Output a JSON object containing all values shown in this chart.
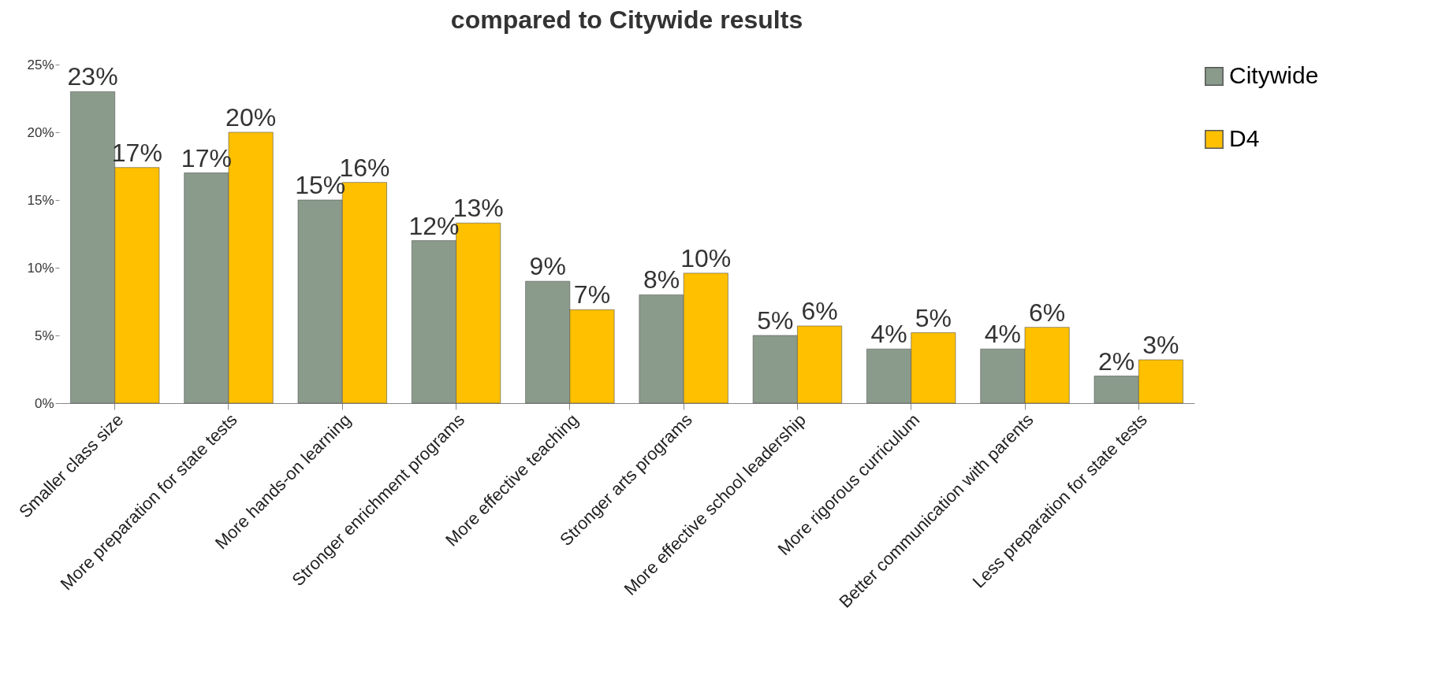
{
  "chart_data": {
    "type": "bar",
    "title": "compared to Citywide results",
    "categories": [
      "Smaller class size",
      "More preparation for state tests",
      "More hands-on learning",
      "Stronger enrichment programs",
      "More effective teaching",
      "Stronger arts programs",
      "More effective school leadership",
      "More rigorous curriculum",
      "Better communication with parents",
      "Less preparation for state tests"
    ],
    "series": [
      {
        "name": "Citywide",
        "color": "#8a9b8c",
        "values": [
          23,
          17,
          15,
          12,
          9,
          8,
          5,
          4,
          4,
          2
        ],
        "value_labels": [
          "23%",
          "17%",
          "15%",
          "12%",
          "9%",
          "8%",
          "5%",
          "4%",
          "4%",
          "2%"
        ]
      },
      {
        "name": "D4",
        "color": "#ffc000",
        "values": [
          17.4,
          20,
          16.3,
          13.3,
          6.9,
          9.6,
          5.7,
          5.2,
          5.6,
          3.2
        ],
        "value_labels": [
          "17%",
          "20%",
          "16%",
          "13%",
          "7%",
          "10%",
          "6%",
          "5%",
          "6%",
          "3%"
        ]
      }
    ],
    "ylim": [
      0,
      25
    ],
    "yticks": [
      {
        "value": 0,
        "label": "0%"
      },
      {
        "value": 5,
        "label": "5%"
      },
      {
        "value": 10,
        "label": "10%"
      },
      {
        "value": 15,
        "label": "15%"
      },
      {
        "value": 20,
        "label": "20%"
      },
      {
        "value": 25,
        "label": "25%"
      }
    ],
    "grid": false,
    "legend": "right"
  }
}
